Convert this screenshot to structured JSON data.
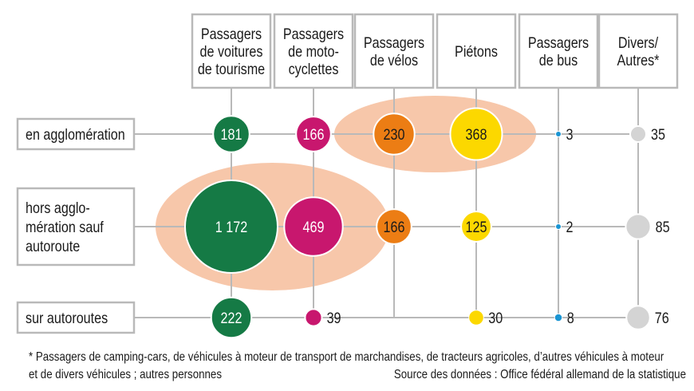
{
  "chart_data": {
    "type": "bubble-matrix",
    "columns": [
      {
        "key": "voitures",
        "lines": [
          "Passagers",
          "de voitures",
          "de tourisme"
        ],
        "color": "#157a45"
      },
      {
        "key": "moto",
        "lines": [
          "Passagers",
          "de moto-",
          "cyclettes"
        ],
        "color": "#c8176e"
      },
      {
        "key": "velos",
        "lines": [
          "Passagers",
          "de vélos"
        ],
        "color": "#ec7d14"
      },
      {
        "key": "pietons",
        "lines": [
          "Piétons"
        ],
        "color": "#fcd800"
      },
      {
        "key": "bus",
        "lines": [
          "Passagers",
          "de bus"
        ],
        "color": "#1b95d3"
      },
      {
        "key": "divers",
        "lines": [
          "Divers/",
          "Autres*"
        ],
        "color": "#d4d4d4"
      }
    ],
    "rows": [
      {
        "key": "agglo",
        "lines": [
          "en agglomération"
        ],
        "values": [
          181,
          166,
          230,
          368,
          3,
          35
        ]
      },
      {
        "key": "hors",
        "lines": [
          "hors agglo-",
          "mération sauf",
          "autoroute"
        ],
        "values": [
          1172,
          469,
          166,
          125,
          2,
          85
        ]
      },
      {
        "key": "autoroutes",
        "lines": [
          "sur autoroutes"
        ],
        "values": [
          222,
          39,
          null,
          30,
          8,
          76
        ]
      }
    ],
    "value_labels": [
      [
        "181",
        "166",
        "230",
        "368",
        "3",
        "35"
      ],
      [
        "1 172",
        "469",
        "166",
        "125",
        "2",
        "85"
      ],
      [
        "222",
        "39",
        "",
        "30",
        "8",
        "76"
      ]
    ],
    "highlights": [
      {
        "row": "agglo",
        "columns": [
          "velos",
          "pietons"
        ]
      },
      {
        "row": "hors",
        "columns": [
          "voitures",
          "moto"
        ]
      }
    ],
    "highlight_color": "#f7c7aa",
    "footnote_lines": [
      "* Passagers de camping-cars, de véhicules à moteur de transport de marchandises, de tracteurs agricoles, d’autres véhicules à moteur",
      "et de divers véhicules ; autres personnes"
    ],
    "source": "Source des données : Office fédéral allemand de la statistique"
  }
}
